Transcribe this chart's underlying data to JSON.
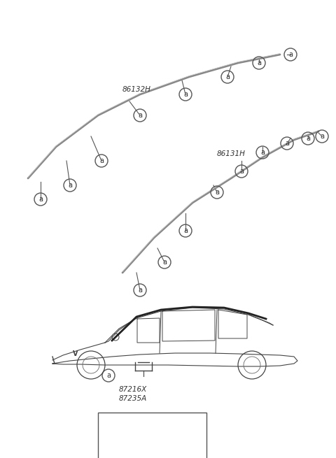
{
  "bg_color": "#ffffff",
  "part_86132H_label": "86132H",
  "part_86131H_label": "86131H",
  "part_a_label": "a",
  "part_87235A_label": "87235A",
  "part_87216X_label": "87216X",
  "line_color": "#555555",
  "text_color": "#333333",
  "circle_color": "#555555",
  "box_color": "#555555"
}
